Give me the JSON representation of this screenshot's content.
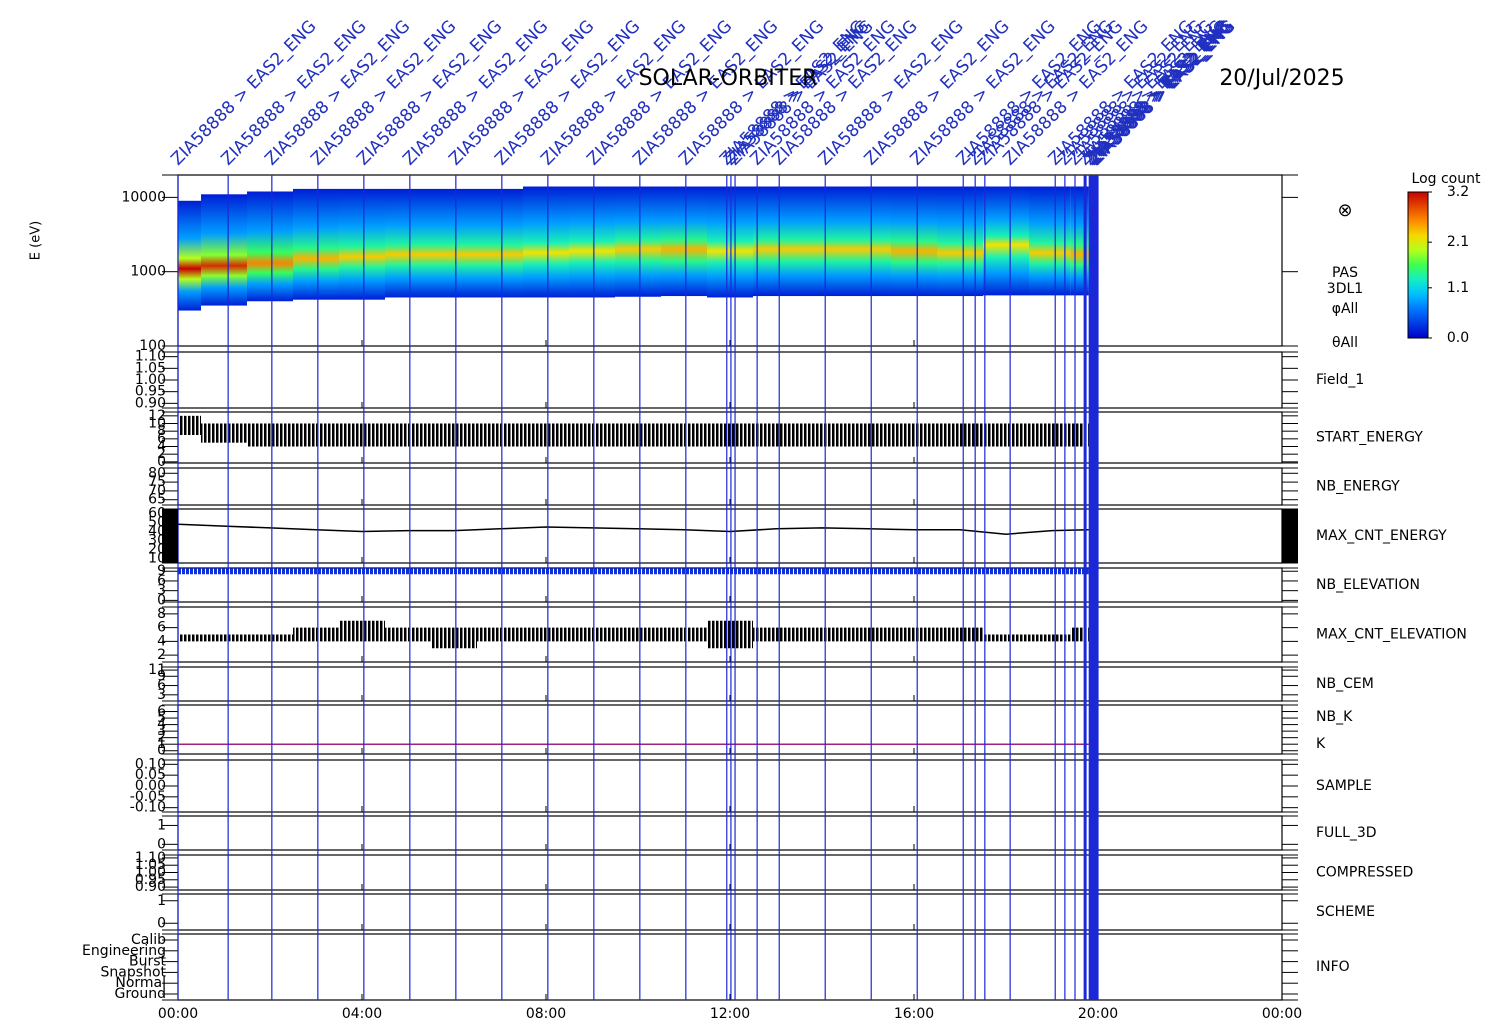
{
  "chart_data": {
    "type": "stacked-panels",
    "title": "SOLAR-ORBITER",
    "date": "20/Jul/2025",
    "xlim": [
      0,
      24
    ],
    "xticks": [
      {
        "value": 0,
        "label": "00:00"
      },
      {
        "value": 4,
        "label": "04:00"
      },
      {
        "value": 8,
        "label": "08:00"
      },
      {
        "value": 12,
        "label": "12:00"
      },
      {
        "value": 16,
        "label": "16:00"
      },
      {
        "value": 20,
        "label": "20:00"
      },
      {
        "value": 24,
        "label": "00:00"
      }
    ],
    "x": [
      0,
      1,
      2,
      3,
      4,
      5,
      6,
      7,
      8,
      9,
      10,
      11,
      12,
      13,
      14,
      15,
      16,
      17,
      18,
      19,
      19.8
    ],
    "events": [
      {
        "time": 0,
        "label": "ZIA58888 > EAS2_ENG"
      },
      {
        "time": 1.09,
        "label": "ZIA58888 > EAS2_ENG"
      },
      {
        "time": 2.04,
        "label": "ZIA58888 > EAS2_ENG"
      },
      {
        "time": 3.04,
        "label": "ZIA58888 > EAS2_ENG"
      },
      {
        "time": 4.04,
        "label": "ZIA58888 > EAS2_ENG"
      },
      {
        "time": 5.04,
        "label": "ZIA58888 > EAS2_ENG"
      },
      {
        "time": 6.04,
        "label": "ZIA58888 > EAS2_ENG"
      },
      {
        "time": 7.04,
        "label": "ZIA58888 > EAS2_ENG"
      },
      {
        "time": 8.04,
        "label": "ZIA58888 > EAS2_ENG"
      },
      {
        "time": 9.04,
        "label": "ZIA58888 > EAS2_ENG"
      },
      {
        "time": 10.04,
        "label": "ZIA58888 > EAS2_ENG"
      },
      {
        "time": 11.04,
        "label": "ZIA58888 > EAS2_ENG"
      },
      {
        "time": 11.93,
        "label": "ZIA58888 > EAS2_ENG"
      },
      {
        "time": 12.02,
        "label": "ZIA58888 > EAS2_ENG"
      },
      {
        "time": 12.11,
        "label": "ZIA58888 > EAS2_ENG"
      },
      {
        "time": 12.59,
        "label": "ZIA58888 > EAS2_ENG"
      },
      {
        "time": 13.07,
        "label": "ZIA58888 > EAS2_ENG"
      },
      {
        "time": 14.07,
        "label": "ZIA58888 > EAS2_ENG"
      },
      {
        "time": 15.07,
        "label": "ZIA58888 > EAS2_ENG"
      },
      {
        "time": 16.07,
        "label": "ZIA58888 > EAS2_ENG"
      },
      {
        "time": 17.07,
        "label": "ZIA58888 > EAS2_ENG"
      },
      {
        "time": 17.33,
        "label": "ZIA58888 > EAS2_ENG"
      },
      {
        "time": 17.54,
        "label": "ZIA58888 > EAS2_ENG"
      },
      {
        "time": 18.09,
        "label": "ZIA58888 > EAS2_ENG"
      },
      {
        "time": 19.07,
        "label": "ZIA58888 > EAS2_ENG"
      },
      {
        "time": 19.28,
        "label": "ZIA58888 > EAS2_ENG"
      },
      {
        "time": 19.5,
        "label": "ZIA58888 > EAS2_ENG"
      },
      {
        "time": 19.72,
        "label": "ZIA58888 > EAS2_ENG"
      },
      {
        "time": 19.83,
        "label": "ZIA58888 > EAS2_ENG"
      },
      {
        "time": 19.87,
        "label": "ZIA58888 > EAS2_ENG"
      },
      {
        "time": 19.91,
        "label": "ZIA58888 > EAS2_ENG"
      },
      {
        "time": 19.95,
        "label": "ZIA58888 > EAS2_ENG"
      },
      {
        "time": 19.98,
        "label": "ZIA58888 > EAS2_ENG"
      }
    ],
    "panels": [
      {
        "type": "spectrogram",
        "ylabel": "E (eV)",
        "ylog": true,
        "ylim": [
          100,
          20000
        ],
        "yticks": [
          100,
          1000,
          10000
        ],
        "symbol": "⊗",
        "labels": [
          {
            "text": "PAS",
            "color": "#000000"
          },
          {
            "text": "3DL1",
            "color": "#000000"
          },
          {
            "text": "φAll",
            "color": "#000000"
          },
          {
            "text": "θAll",
            "color": "#000000"
          }
        ],
        "low": [
          300,
          350,
          400,
          420,
          420,
          450,
          450,
          450,
          450,
          450,
          460,
          470,
          450,
          470,
          470,
          470,
          470,
          470,
          480,
          480,
          480
        ],
        "high": [
          9000,
          11000,
          12000,
          13000,
          13000,
          13000,
          13000,
          13000,
          14000,
          14000,
          14000,
          14000,
          14000,
          14000,
          14000,
          14000,
          14000,
          14000,
          14000,
          14000,
          14000
        ],
        "peak": [
          1100,
          1200,
          1300,
          1500,
          1600,
          1700,
          1700,
          1700,
          1800,
          1900,
          2000,
          2000,
          1900,
          2000,
          2000,
          2000,
          1900,
          1800,
          2300,
          1800,
          1700
        ],
        "peak_log_count": [
          3.2,
          3.0,
          2.6,
          2.4,
          2.3,
          2.3,
          2.3,
          2.3,
          2.2,
          2.2,
          2.3,
          2.4,
          2.2,
          2.3,
          2.3,
          2.3,
          2.4,
          2.3,
          2.2,
          2.3,
          2.4
        ],
        "colorbar_title": "Log count",
        "clim": [
          0,
          3.2
        ],
        "cticks": [
          {
            "value": 0,
            "label": "0.0"
          },
          1.1,
          2.1,
          3.2
        ]
      },
      {
        "type": "empty",
        "ylim": [
          0.88,
          1.12
        ],
        "yticks": [
          {
            "value": 0.9,
            "label": "0.90"
          },
          {
            "value": 0.95,
            "label": "0.95"
          },
          {
            "value": 1,
            "label": "1.00"
          },
          {
            "value": 1.05,
            "label": "1.05"
          },
          {
            "value": 1.1,
            "label": "1.10"
          }
        ],
        "labels": [
          {
            "text": "Field_1",
            "color": "#2030c0"
          }
        ]
      },
      {
        "type": "range",
        "ylim": [
          -0.3,
          13
        ],
        "yticks": [
          0,
          2,
          4,
          6,
          8,
          10,
          12
        ],
        "labels": [
          {
            "text": "START_ENERGY",
            "color": "#000000"
          }
        ],
        "low": [
          7,
          5,
          4,
          4,
          4,
          4,
          4,
          4,
          4,
          4,
          4,
          4,
          4,
          4,
          4,
          4,
          4,
          4,
          4,
          4,
          4
        ],
        "high": [
          12,
          10,
          10,
          10,
          10,
          10,
          10,
          10,
          10,
          10,
          10,
          10,
          10,
          10,
          10,
          10,
          10,
          10,
          10,
          10,
          10
        ]
      },
      {
        "type": "empty",
        "ylim": [
          62,
          83
        ],
        "yticks": [
          65,
          70,
          75,
          80
        ],
        "labels": [
          {
            "text": "NB_ENERGY",
            "color": "#2030c0"
          }
        ]
      },
      {
        "type": "line",
        "ylim": [
          5,
          65
        ],
        "yticks": [
          10,
          20,
          30,
          40,
          50,
          60
        ],
        "labels": [
          {
            "text": "MAX_CNT_ENERGY",
            "color": "#000000"
          }
        ],
        "series": [
          {
            "color": "#000000",
            "values": [
              48,
              46,
              44,
              42,
              40,
              41,
              41,
              43,
              45,
              44,
              43,
              42,
              40,
              43,
              44,
              43,
              42,
              42,
              37,
              41,
              42
            ]
          }
        ]
      },
      {
        "type": "line",
        "ylim": [
          -0.5,
          10
        ],
        "yticks": [
          0,
          3,
          6,
          9
        ],
        "labels": [
          {
            "text": "NB_ELEVATION",
            "color": "#2030c0"
          }
        ],
        "series": [
          {
            "color": "#1030e0",
            "values": [
              9,
              9,
              9,
              9,
              9,
              9,
              9,
              9,
              9,
              9,
              9,
              9,
              9,
              9,
              9,
              9,
              9,
              9,
              9,
              9,
              9
            ]
          }
        ]
      },
      {
        "type": "range",
        "ylim": [
          1,
          9
        ],
        "yticks": [
          2,
          4,
          6,
          8
        ],
        "labels": [
          {
            "text": "MAX_CNT_ELEVATION",
            "color": "#000000"
          }
        ],
        "low": [
          4,
          4,
          4,
          4,
          4,
          4,
          3,
          4,
          4,
          4,
          4,
          4,
          3,
          4,
          4,
          4,
          4,
          4,
          4,
          4,
          4
        ],
        "high": [
          5,
          5,
          5,
          6,
          7,
          6,
          6,
          6,
          6,
          6,
          6,
          6,
          7,
          6,
          6,
          6,
          6,
          6,
          5,
          5,
          6
        ]
      },
      {
        "type": "empty",
        "ylim": [
          1,
          12
        ],
        "yticks": [
          3,
          6,
          9,
          11
        ],
        "labels": [
          {
            "text": "NB_CEM",
            "color": "#2030c0"
          }
        ]
      },
      {
        "type": "line",
        "ylim": [
          -0.5,
          7
        ],
        "yticks": [
          0,
          1,
          2,
          3,
          4,
          5,
          6
        ],
        "labels": [
          {
            "text": "NB_K",
            "color": "#d02020"
          },
          {
            "text": "K",
            "color": "#2030c0"
          }
        ],
        "series": [
          {
            "color": "#a02080",
            "values": [
              1,
              1,
              1,
              1,
              1,
              1,
              1,
              1,
              1,
              1,
              1,
              1,
              1,
              1,
              1,
              1,
              1,
              1,
              1,
              1,
              1
            ]
          }
        ]
      },
      {
        "type": "empty",
        "ylim": [
          -0.12,
          0.12
        ],
        "yticks": [
          {
            "value": -0.1,
            "label": "-0.10"
          },
          {
            "value": -0.05,
            "label": "-0.05"
          },
          {
            "value": 0,
            "label": "0.00"
          },
          {
            "value": 0.05,
            "label": "0.05"
          },
          {
            "value": 0.1,
            "label": "0.10"
          }
        ],
        "labels": [
          {
            "text": "SAMPLE",
            "color": "#2030c0"
          }
        ]
      },
      {
        "type": "empty",
        "ylim": [
          -0.3,
          1.5
        ],
        "yticks": [
          0,
          1
        ],
        "labels": [
          {
            "text": "FULL_3D",
            "color": "#2030c0"
          }
        ]
      },
      {
        "type": "empty",
        "ylim": [
          0.88,
          1.12
        ],
        "yticks": [
          {
            "value": 0.9,
            "label": "0.90"
          },
          {
            "value": 0.95,
            "label": "0.95"
          },
          {
            "value": 1,
            "label": "1.00"
          },
          {
            "value": 1.05,
            "label": "1.05"
          },
          {
            "value": 1.1,
            "label": "1.10"
          }
        ],
        "labels": [
          {
            "text": "COMPRESSED",
            "color": "#000000"
          }
        ]
      },
      {
        "type": "empty",
        "ylim": [
          -0.3,
          1.3
        ],
        "yticks": [
          0,
          1
        ],
        "labels": [
          {
            "text": "SCHEME",
            "color": "#000000"
          }
        ]
      },
      {
        "type": "categorical",
        "categories": [
          "Ground",
          "Normal",
          "Snapshot",
          "Burst",
          "Engineering",
          "Calib"
        ],
        "labels": [
          {
            "text": "INFO",
            "color": "#000000"
          }
        ]
      }
    ]
  }
}
